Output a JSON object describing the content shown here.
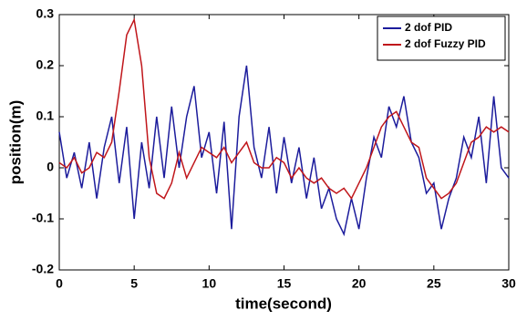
{
  "chart_data": {
    "type": "line",
    "xlabel": "time(second)",
    "ylabel": "position(m)",
    "x": [
      0,
      0.5,
      1,
      1.5,
      2,
      2.5,
      3,
      3.5,
      4,
      4.5,
      5,
      5.5,
      6,
      6.5,
      7,
      7.5,
      8,
      8.5,
      9,
      9.5,
      10,
      10.5,
      11,
      11.5,
      12,
      12.5,
      13,
      13.5,
      14,
      14.5,
      15,
      15.5,
      16,
      16.5,
      17,
      17.5,
      18,
      18.5,
      19,
      19.5,
      20,
      20.5,
      21,
      21.5,
      22,
      22.5,
      23,
      23.5,
      24,
      24.5,
      25,
      25.5,
      26,
      26.5,
      27,
      27.5,
      28,
      28.5,
      29,
      29.5,
      30
    ],
    "series": [
      {
        "name": "2 dof PID",
        "color": "#1c1c9c",
        "values": [
          0.07,
          -0.02,
          0.03,
          -0.04,
          0.05,
          -0.06,
          0.04,
          0.1,
          -0.03,
          0.08,
          -0.1,
          0.05,
          -0.04,
          0.1,
          -0.02,
          0.12,
          0.0,
          0.1,
          0.16,
          0.02,
          0.07,
          -0.05,
          0.09,
          -0.12,
          0.1,
          0.2,
          0.04,
          -0.02,
          0.08,
          -0.05,
          0.06,
          -0.03,
          0.04,
          -0.06,
          0.02,
          -0.08,
          -0.04,
          -0.1,
          -0.13,
          -0.06,
          -0.12,
          -0.02,
          0.06,
          0.02,
          0.12,
          0.08,
          0.14,
          0.05,
          0.02,
          -0.05,
          -0.03,
          -0.12,
          -0.06,
          -0.02,
          0.06,
          0.02,
          0.1,
          -0.03,
          0.14,
          0.0,
          -0.02
        ]
      },
      {
        "name": "2 dof Fuzzy PID",
        "color": "#c0161b",
        "values": [
          0.01,
          0.0,
          0.02,
          -0.01,
          0.0,
          0.03,
          0.02,
          0.05,
          0.15,
          0.26,
          0.29,
          0.2,
          0.02,
          -0.05,
          -0.06,
          -0.03,
          0.03,
          -0.02,
          0.01,
          0.04,
          0.03,
          0.02,
          0.04,
          0.01,
          0.03,
          0.05,
          0.01,
          0.0,
          0.0,
          0.02,
          0.01,
          -0.02,
          0.0,
          -0.02,
          -0.03,
          -0.02,
          -0.04,
          -0.05,
          -0.04,
          -0.06,
          -0.03,
          0.0,
          0.04,
          0.08,
          0.1,
          0.11,
          0.08,
          0.05,
          0.04,
          -0.02,
          -0.04,
          -0.06,
          -0.05,
          -0.03,
          0.01,
          0.05,
          0.06,
          0.08,
          0.07,
          0.08,
          0.07
        ]
      }
    ],
    "xlim": [
      0,
      30
    ],
    "xticks": [
      0,
      5,
      10,
      15,
      20,
      25,
      30
    ],
    "ylim": [
      -0.2,
      0.3
    ],
    "yticks": [
      -0.2,
      -0.1,
      0,
      0.1,
      0.2,
      0.3
    ],
    "grid": false,
    "legend": "upper-right"
  }
}
